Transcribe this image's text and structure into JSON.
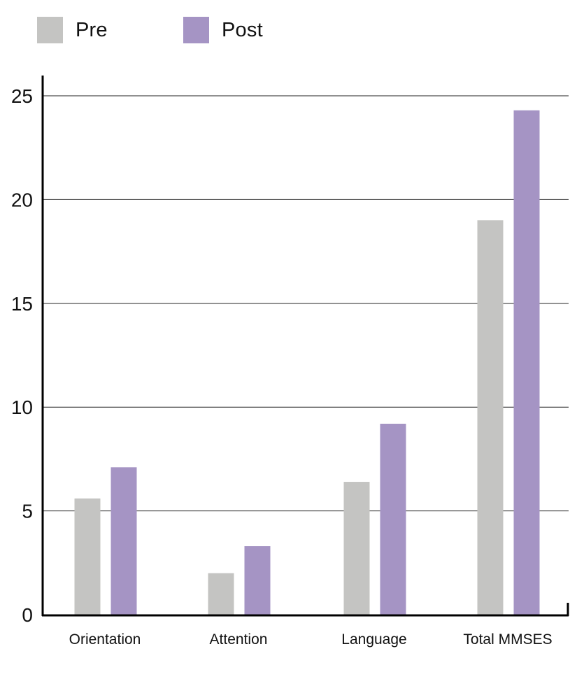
{
  "chart_data": {
    "type": "bar",
    "categories": [
      "Orientation",
      "Attention",
      "Language",
      "Total MMSES"
    ],
    "series": [
      {
        "name": "Pre",
        "color": "#c4c4c2",
        "values": [
          5.6,
          2.0,
          6.4,
          19.0
        ]
      },
      {
        "name": "Post",
        "color": "#a594c4",
        "values": [
          7.1,
          3.3,
          9.2,
          24.3
        ]
      }
    ],
    "yticks": [
      0,
      5,
      10,
      15,
      20,
      25
    ],
    "ylim": [
      0,
      25
    ],
    "grid": true,
    "legend_position": "top-left"
  }
}
